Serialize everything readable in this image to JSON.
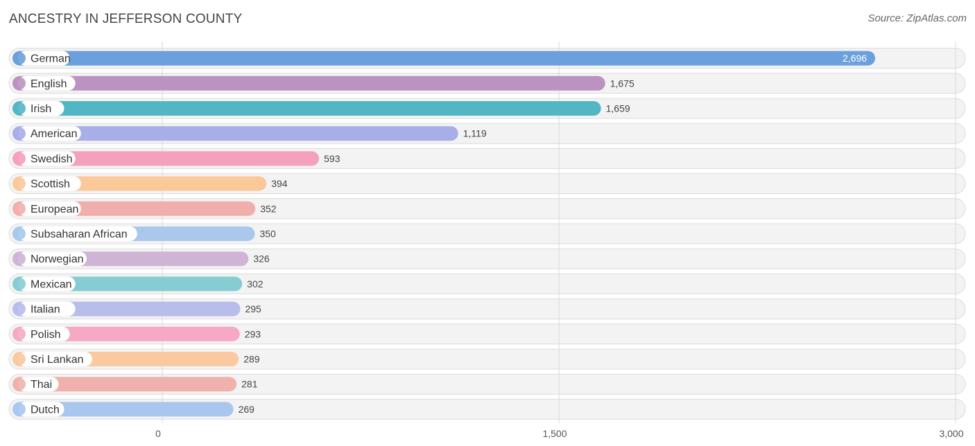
{
  "header": {
    "title": "ANCESTRY IN JEFFERSON COUNTY",
    "source": "Source: ZipAtlas.com"
  },
  "chart_data": {
    "type": "bar",
    "orientation": "horizontal",
    "title": "ANCESTRY IN JEFFERSON COUNTY",
    "categories": [
      "German",
      "English",
      "Irish",
      "American",
      "Swedish",
      "Scottish",
      "European",
      "Subsaharan African",
      "Norwegian",
      "Mexican",
      "Italian",
      "Polish",
      "Sri Lankan",
      "Thai",
      "Dutch"
    ],
    "values": [
      2696,
      1675,
      1659,
      1119,
      593,
      394,
      352,
      350,
      326,
      302,
      295,
      293,
      289,
      281,
      269
    ],
    "value_labels": [
      "2,696",
      "1,675",
      "1,659",
      "1,119",
      "593",
      "394",
      "352",
      "350",
      "326",
      "302",
      "295",
      "293",
      "289",
      "281",
      "269"
    ],
    "colors": [
      "#6ca0dc",
      "#bc92c2",
      "#52b6c4",
      "#a7aee8",
      "#f5a0bd",
      "#fbc89a",
      "#f0afab",
      "#a9c8ec",
      "#cfb4d6",
      "#85cdd3",
      "#b8bdec",
      "#f6a8c4",
      "#fbc99f",
      "#f0b1ac",
      "#a9c7ee"
    ],
    "xlim": [
      0,
      3000
    ],
    "xticks": [
      0,
      1500,
      3000
    ],
    "xtick_labels": [
      "0",
      "1,500",
      "3,000"
    ],
    "grid": true,
    "xlabel": "",
    "ylabel": ""
  }
}
